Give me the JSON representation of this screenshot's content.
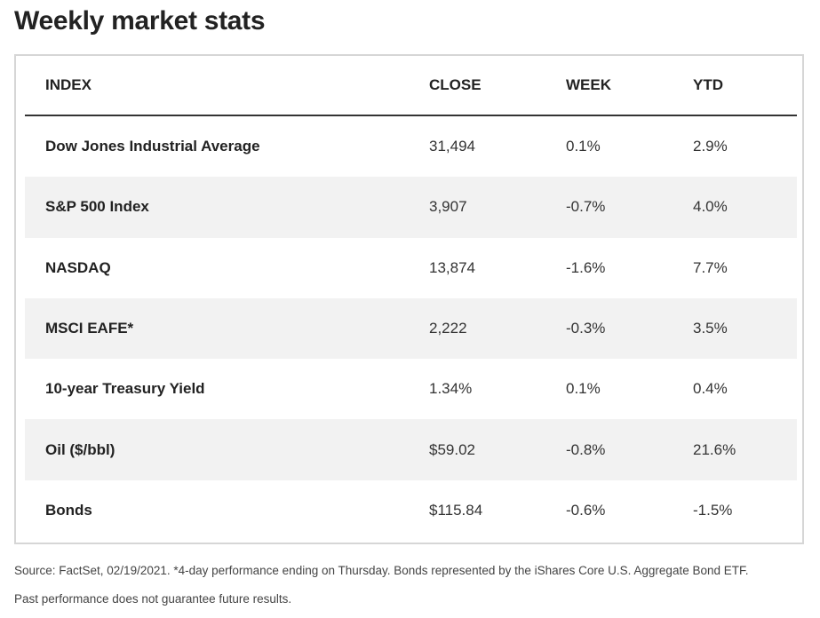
{
  "title": "Weekly market stats",
  "table": {
    "headers": {
      "index": "INDEX",
      "close": "CLOSE",
      "week": "WEEK",
      "ytd": "YTD"
    },
    "rows": [
      {
        "index": "Dow Jones Industrial Average",
        "close": "31,494",
        "week": "0.1%",
        "ytd": "2.9%"
      },
      {
        "index": "S&P 500 Index",
        "close": "3,907",
        "week": "-0.7%",
        "ytd": "4.0%"
      },
      {
        "index": "NASDAQ",
        "close": "13,874",
        "week": "-1.6%",
        "ytd": "7.7%"
      },
      {
        "index": "MSCI EAFE*",
        "close": "2,222",
        "week": "-0.3%",
        "ytd": "3.5%"
      },
      {
        "index": "10-year Treasury Yield",
        "close": "1.34%",
        "week": "0.1%",
        "ytd": "0.4%"
      },
      {
        "index": "Oil ($/bbl)",
        "close": "$59.02",
        "week": "-0.8%",
        "ytd": "21.6%"
      },
      {
        "index": "Bonds",
        "close": "$115.84",
        "week": "-0.6%",
        "ytd": "-1.5%"
      }
    ]
  },
  "footnotes": {
    "source": "Source: FactSet, 02/19/2021. *4-day performance ending on Thursday. Bonds represented by the iShares Core U.S. Aggregate Bond ETF.",
    "disclaimer": "Past performance does not guarantee future results."
  },
  "colors": {
    "alt_row": "#f2f2f2",
    "border": "#d6d6d6",
    "header_rule": "#333333"
  }
}
